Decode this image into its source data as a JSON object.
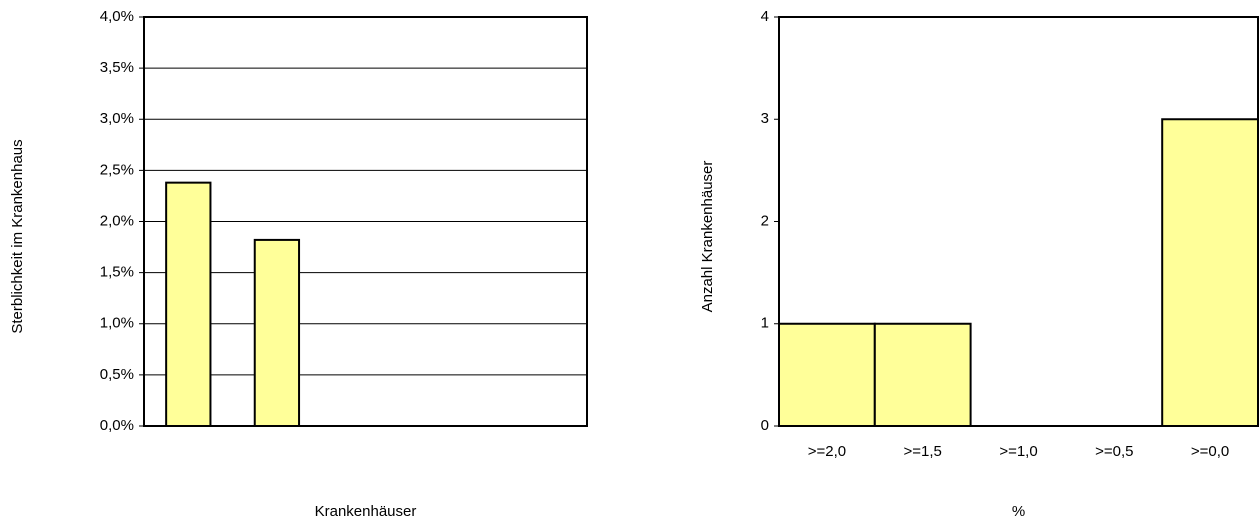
{
  "chart_data": [
    {
      "type": "bar",
      "y_label": "Sterblichkeit im Krankenhaus",
      "x_label": "Krankenhäuser",
      "categories": [
        null,
        null,
        null,
        null,
        null
      ],
      "values": [
        2.38,
        1.82,
        null,
        null,
        null
      ],
      "color": "#ffff99",
      "ylim": [
        0,
        4
      ],
      "yticks": [
        {
          "value": 0,
          "label": "0,0%"
        },
        {
          "value": 0.5,
          "label": "0,5%"
        },
        {
          "value": 1,
          "label": "1,0%"
        },
        {
          "value": 1.5,
          "label": "1,5%"
        },
        {
          "value": 2,
          "label": "2,0%"
        },
        {
          "value": 2.5,
          "label": "2,5%"
        },
        {
          "value": 3,
          "label": "3,0%"
        },
        {
          "value": 3.5,
          "label": "3,5%"
        },
        {
          "value": 4,
          "label": "4,0%"
        }
      ],
      "grid": true
    },
    {
      "type": "bar",
      "y_label": "Anzahl Krankenhäuser",
      "x_label": "%",
      "categories": [
        ">=2,0",
        ">=1,5",
        ">=1,0",
        ">=0,5",
        ">=0,0"
      ],
      "values": [
        1,
        1,
        0,
        0,
        3
      ],
      "color": "#ffff99",
      "ylim": [
        0,
        4
      ],
      "yticks": [
        0,
        1,
        2,
        3,
        4
      ],
      "grid": false
    }
  ]
}
